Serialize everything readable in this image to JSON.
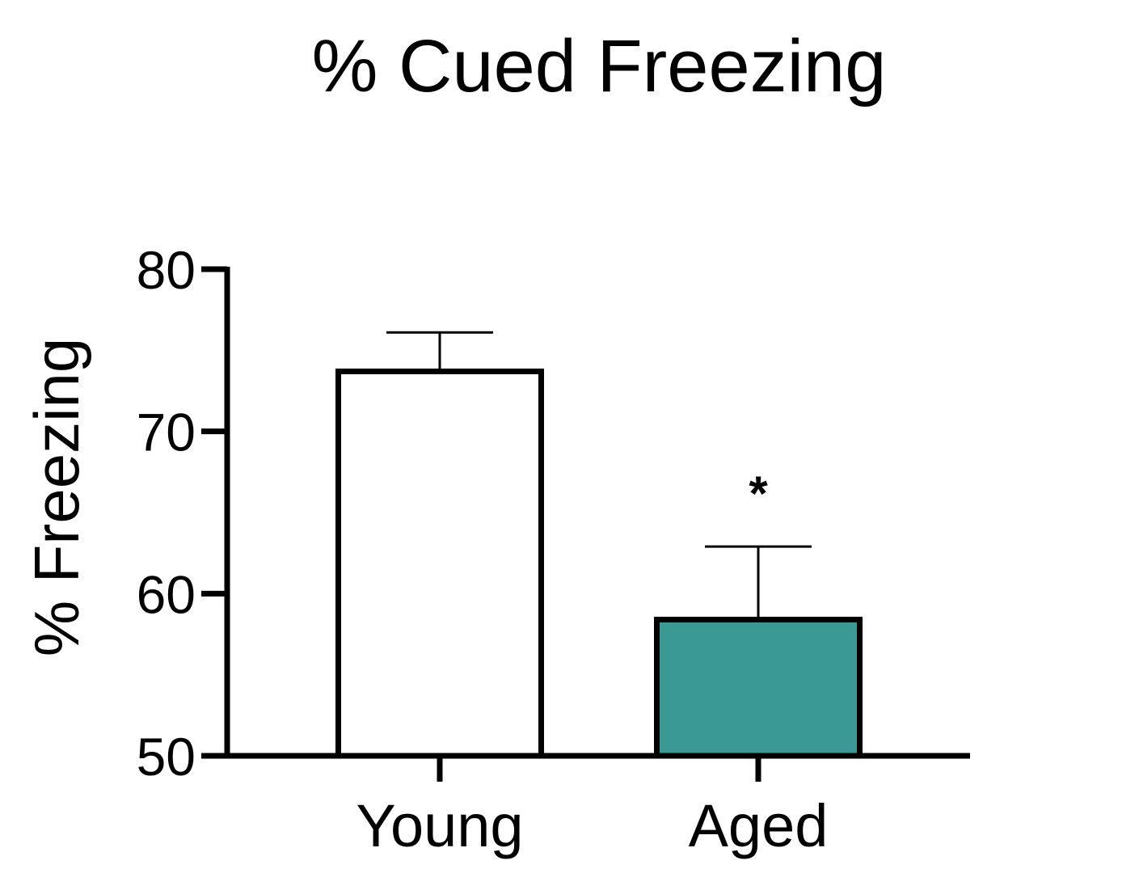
{
  "chart_data": {
    "type": "bar",
    "title": "% Cued Freezing",
    "xlabel": "",
    "ylabel": "% Freezing",
    "categories": [
      "Young",
      "Aged"
    ],
    "values": [
      73.7,
      58.4
    ],
    "error": [
      2.4,
      4.5
    ],
    "significance": [
      "",
      "*"
    ],
    "colors": [
      "#ffffff",
      "#3a9a93"
    ],
    "ylim": [
      50,
      80
    ],
    "yticks": [
      "50",
      "60",
      "70",
      "80"
    ],
    "grid": false,
    "legend": "none"
  }
}
